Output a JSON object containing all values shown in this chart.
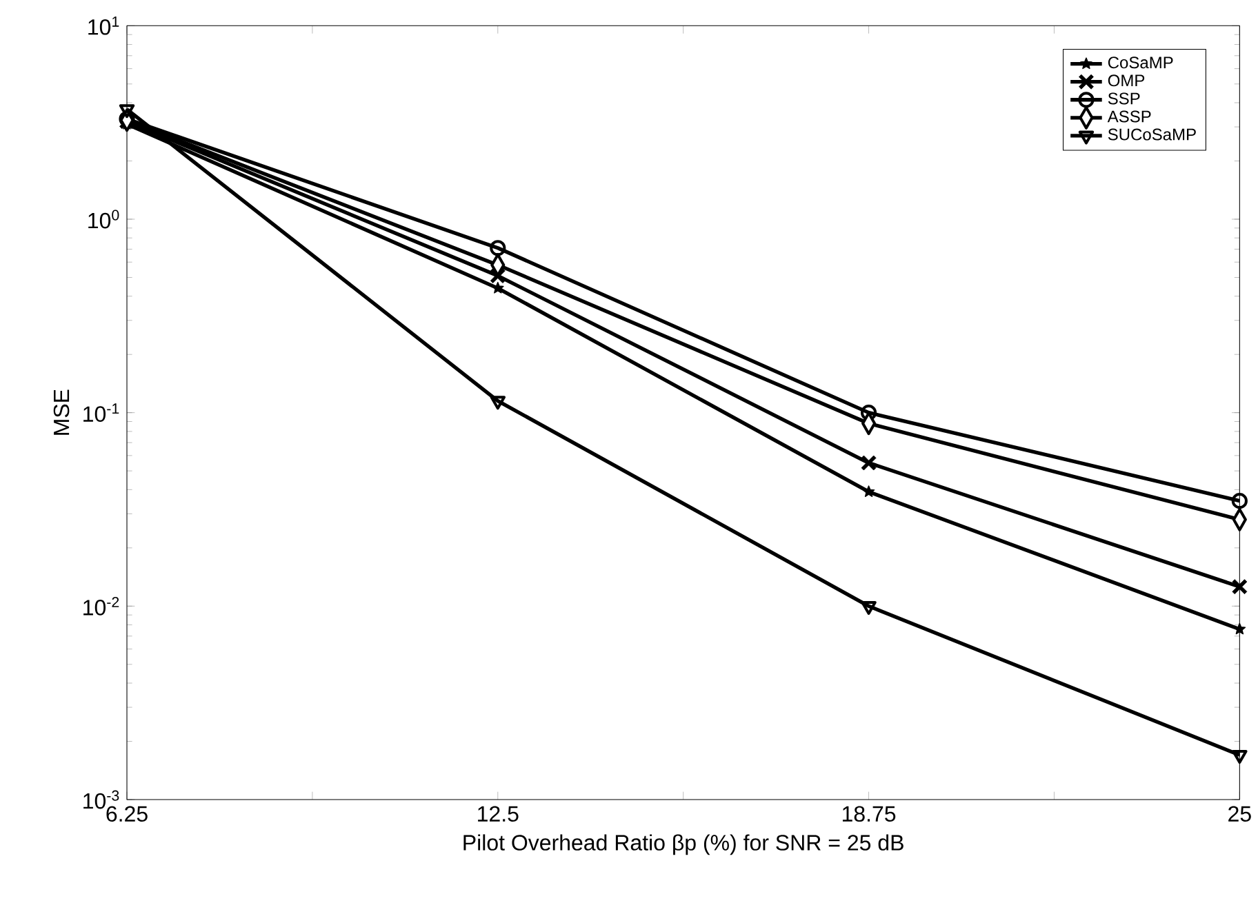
{
  "chart_data": {
    "type": "line",
    "xlabel": "Pilot Overhead Ratio βp (%) for SNR = 25 dB",
    "ylabel": "MSE",
    "x": [
      6.25,
      12.5,
      18.75,
      25
    ],
    "log": "y",
    "xlim": [
      6.25,
      25
    ],
    "ylim": [
      0.001,
      10
    ],
    "xticks": [
      6.25,
      {
        "value": 9.375,
        "label": null
      },
      12.5,
      {
        "value": 15.625,
        "label": null
      },
      18.75,
      {
        "value": 21.875,
        "label": null
      },
      25
    ],
    "yticks": [
      {
        "value": 0.001,
        "label": "10$^{-3}$"
      },
      {
        "value": 0.01,
        "label": "10$^{-2}$"
      },
      {
        "value": 0.1,
        "label": "10$^{-1}$"
      },
      {
        "value": 1,
        "label": "10$^{0}$"
      },
      {
        "value": 10,
        "label": "10$^{1}$"
      }
    ],
    "grid": false,
    "legend": "top right",
    "line_style": "solid",
    "series": [
      {
        "name": "CoSaMP",
        "color": "#000000",
        "marker": "star",
        "values": [
          3.1,
          0.44,
          0.039,
          0.0076
        ]
      },
      {
        "name": "OMP",
        "color": "#000000",
        "marker": "cross",
        "values": [
          3.2,
          0.51,
          0.055,
          0.0126
        ]
      },
      {
        "name": "SSP",
        "color": "#000000",
        "marker": "circle",
        "values": [
          3.3,
          0.71,
          0.1,
          0.035
        ]
      },
      {
        "name": "ASSP",
        "color": "#000000",
        "marker": "diamond",
        "values": [
          3.25,
          0.58,
          0.088,
          0.028
        ]
      },
      {
        "name": "SUCoSaMP",
        "color": "#000000",
        "marker": "triangle",
        "values": [
          3.7,
          0.115,
          0.01,
          0.0017
        ]
      }
    ]
  }
}
